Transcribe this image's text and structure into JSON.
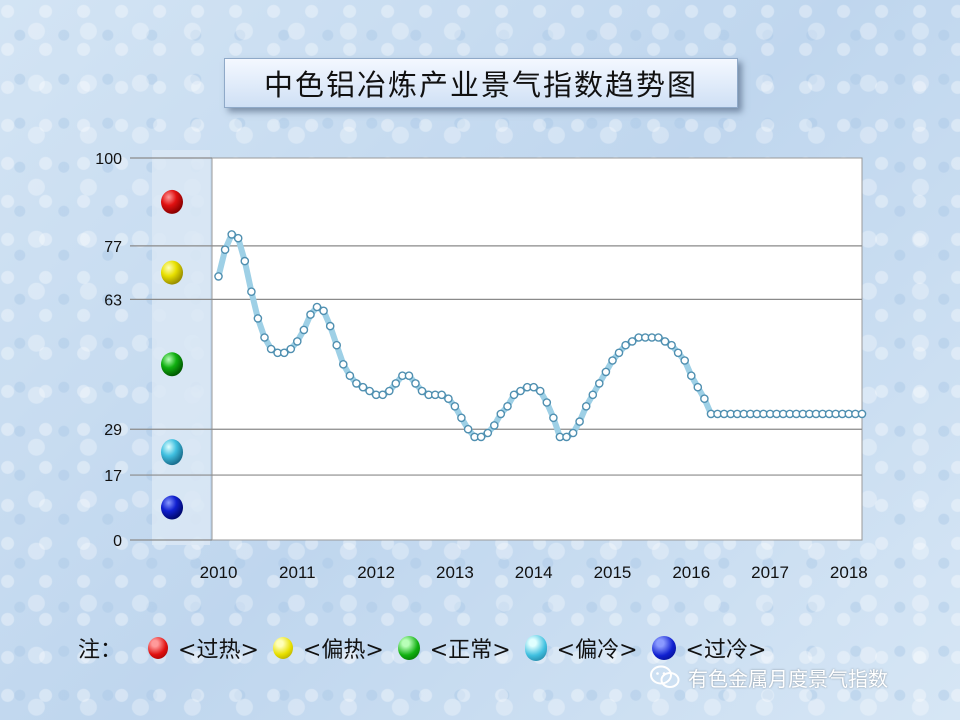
{
  "chart_data": {
    "type": "line",
    "title": "中色铝冶炼产业景气指数趋势图",
    "xlabel": "",
    "ylabel": "",
    "ylim": [
      0,
      100
    ],
    "y_ticks": [
      0,
      17,
      29,
      63,
      77,
      100
    ],
    "x_ticks": [
      "2010",
      "2011",
      "2012",
      "2013",
      "2014",
      "2015",
      "2016",
      "2017",
      "2018"
    ],
    "x_range": [
      2009.917,
      2018.167
    ],
    "grid": "horizontal",
    "zones": [
      {
        "name": "过热",
        "color": "#e01010"
      },
      {
        "name": "偏热",
        "color": "#e8e000"
      },
      {
        "name": "正常",
        "color": "#10b010"
      },
      {
        "name": "偏冷",
        "color": "#40c0e0"
      },
      {
        "name": "过冷",
        "color": "#1020d0"
      }
    ],
    "series": [
      {
        "x": [
          2010.0,
          2010.083,
          2010.167,
          2010.25,
          2010.333,
          2010.417,
          2010.5,
          2010.583,
          2010.667,
          2010.75,
          2010.833,
          2010.917,
          2011.0,
          2011.083,
          2011.167,
          2011.25,
          2011.333,
          2011.417,
          2011.5,
          2011.583,
          2011.667,
          2011.75,
          2011.833,
          2011.917,
          2012.0,
          2012.083,
          2012.167,
          2012.25,
          2012.333,
          2012.417,
          2012.5,
          2012.583,
          2012.667,
          2012.75,
          2012.833,
          2012.917,
          2013.0,
          2013.083,
          2013.167,
          2013.25,
          2013.333,
          2013.417,
          2013.5,
          2013.583,
          2013.667,
          2013.75,
          2013.833,
          2013.917,
          2014.0,
          2014.083,
          2014.167,
          2014.25,
          2014.333,
          2014.417,
          2014.5,
          2014.583,
          2014.667,
          2014.75,
          2014.833,
          2014.917,
          2015.0,
          2015.083,
          2015.167,
          2015.25,
          2015.333,
          2015.417,
          2015.5,
          2015.583,
          2015.667,
          2015.75,
          2015.833,
          2015.917,
          2016.0,
          2016.083,
          2016.167,
          2016.25,
          2016.333,
          2016.417,
          2016.5,
          2016.583,
          2016.667,
          2016.75,
          2016.833,
          2016.917,
          2017.0,
          2017.083,
          2017.167,
          2017.25,
          2017.333,
          2017.417,
          2017.5,
          2017.583,
          2017.667,
          2017.75,
          2017.833,
          2017.917,
          2018.0,
          2018.083,
          2018.167
        ],
        "values": [
          69,
          76,
          80,
          79,
          73,
          65,
          58,
          53,
          50,
          49,
          49,
          50,
          52,
          55,
          59,
          61,
          60,
          56,
          51,
          46,
          43,
          41,
          40,
          39,
          38,
          38,
          39,
          41,
          43,
          43,
          41,
          39,
          38,
          38,
          38,
          37,
          35,
          32,
          29,
          27,
          27,
          28,
          30,
          33,
          35,
          38,
          39,
          40,
          40,
          39,
          36,
          32,
          27,
          27,
          28,
          31,
          35,
          38,
          41,
          44,
          47,
          49,
          51,
          52,
          53,
          53,
          53,
          53,
          52,
          51,
          49,
          47,
          43,
          40,
          37,
          33,
          33,
          33,
          33,
          33,
          33,
          33,
          33,
          33,
          33,
          33,
          33,
          33,
          33,
          33,
          33,
          33,
          33,
          33,
          33,
          33,
          33,
          33,
          33
        ]
      }
    ]
  },
  "legend": {
    "note": "注：",
    "items": [
      "<过热>",
      "<偏热>",
      "<正常>",
      "<偏冷>",
      "<过冷>"
    ]
  },
  "watermark": "有色金属月度景气指数"
}
